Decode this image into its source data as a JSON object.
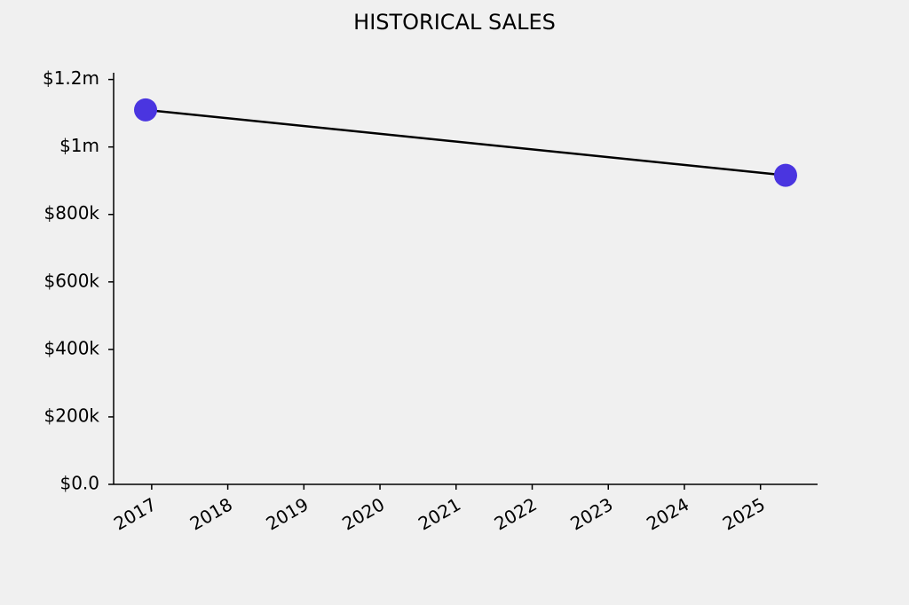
{
  "chart_data": {
    "type": "line",
    "title": "HISTORICAL SALES",
    "x": [
      2016.92,
      2025.33
    ],
    "values": [
      1110000,
      916000
    ],
    "color": "#4a35e0",
    "line_color": "#000000",
    "xlim": [
      2016.5,
      2025.75
    ],
    "xticks": [
      2017,
      2018,
      2019,
      2020,
      2021,
      2022,
      2023,
      2024,
      2025
    ],
    "ylim": [
      0,
      1220000
    ],
    "yticks": [
      {
        "value": 0,
        "label": "$0.0"
      },
      {
        "value": 200000,
        "label": "$200k"
      },
      {
        "value": 400000,
        "label": "$400k"
      },
      {
        "value": 600000,
        "label": "$600k"
      },
      {
        "value": 800000,
        "label": "$800k"
      },
      {
        "value": 1000000,
        "label": "$1m"
      },
      {
        "value": 1200000,
        "label": "$1.2m"
      }
    ],
    "grid": false
  }
}
